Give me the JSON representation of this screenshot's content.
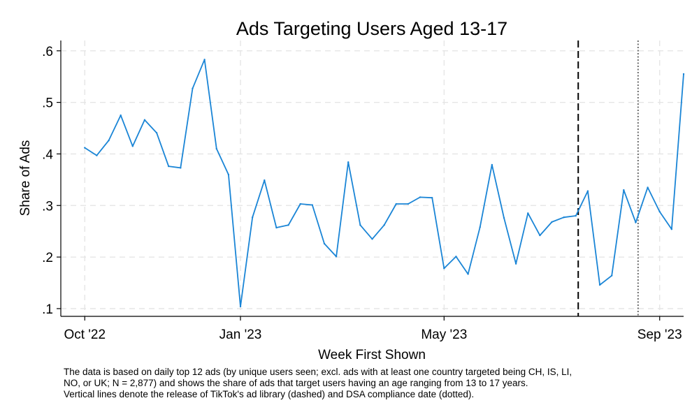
{
  "chart_data": {
    "type": "line",
    "title": "Ads Targeting Users Aged 13-17",
    "xlabel": "Week First Shown",
    "ylabel": "Share of Ads",
    "ylim": [
      0.085,
      0.62
    ],
    "yticks": [
      {
        "value": 0.1,
        "label": ".1"
      },
      {
        "value": 0.2,
        "label": ".2"
      },
      {
        "value": 0.3,
        "label": ".3"
      },
      {
        "value": 0.4,
        "label": ".4"
      },
      {
        "value": 0.5,
        "label": ".5"
      },
      {
        "value": 0.6,
        "label": ".6"
      }
    ],
    "xlim": [
      -2,
      50
    ],
    "xticks": [
      {
        "week": 0,
        "label": "Oct '22"
      },
      {
        "week": 13,
        "label": "Jan '23"
      },
      {
        "week": 30,
        "label": "May '23"
      },
      {
        "week": 48,
        "label": "Sep '23"
      }
    ],
    "grid": true,
    "series": [
      {
        "name": "Share of Ads",
        "color": "#1a85d6",
        "x": [
          0,
          1,
          2,
          3,
          4,
          5,
          6,
          7,
          8,
          9,
          10,
          11,
          12,
          13,
          14,
          15,
          16,
          17,
          18,
          19,
          20,
          21,
          22,
          23,
          24,
          25,
          26,
          27,
          28,
          29,
          30,
          31,
          32,
          33,
          34,
          35,
          36,
          37,
          38,
          39,
          40,
          41,
          42,
          43,
          44,
          45,
          46,
          47,
          48,
          49,
          50
        ],
        "values": [
          0.412,
          0.397,
          0.426,
          0.475,
          0.415,
          0.466,
          0.441,
          0.376,
          0.373,
          0.527,
          0.583,
          0.41,
          0.36,
          0.104,
          0.277,
          0.349,
          0.257,
          0.262,
          0.303,
          0.301,
          0.226,
          0.201,
          0.384,
          0.262,
          0.235,
          0.262,
          0.303,
          0.303,
          0.316,
          0.315,
          0.178,
          0.201,
          0.167,
          0.258,
          0.379,
          0.276,
          0.187,
          0.285,
          0.242,
          0.268,
          0.277,
          0.28,
          0.328,
          0.146,
          0.164,
          0.33,
          0.267,
          0.335,
          0.288,
          0.254,
          0.555
        ]
      }
    ],
    "vlines": [
      {
        "week": 41.2,
        "style": "dashed",
        "label": "TikTok ad library release"
      },
      {
        "week": 46.2,
        "style": "dotted",
        "label": "DSA compliance date"
      }
    ]
  },
  "note": {
    "lines": [
      "The data is based on daily top 12 ads (by unique users seen; excl. ads with at least one country targeted being CH, IS, LI,",
      "NO, or UK; N = 2,877) and shows the share of ads that target users having an age ranging from 13 to 17 years.",
      "Vertical lines denote the release of TikTok's ad library (dashed) and DSA compliance date (dotted)."
    ]
  }
}
